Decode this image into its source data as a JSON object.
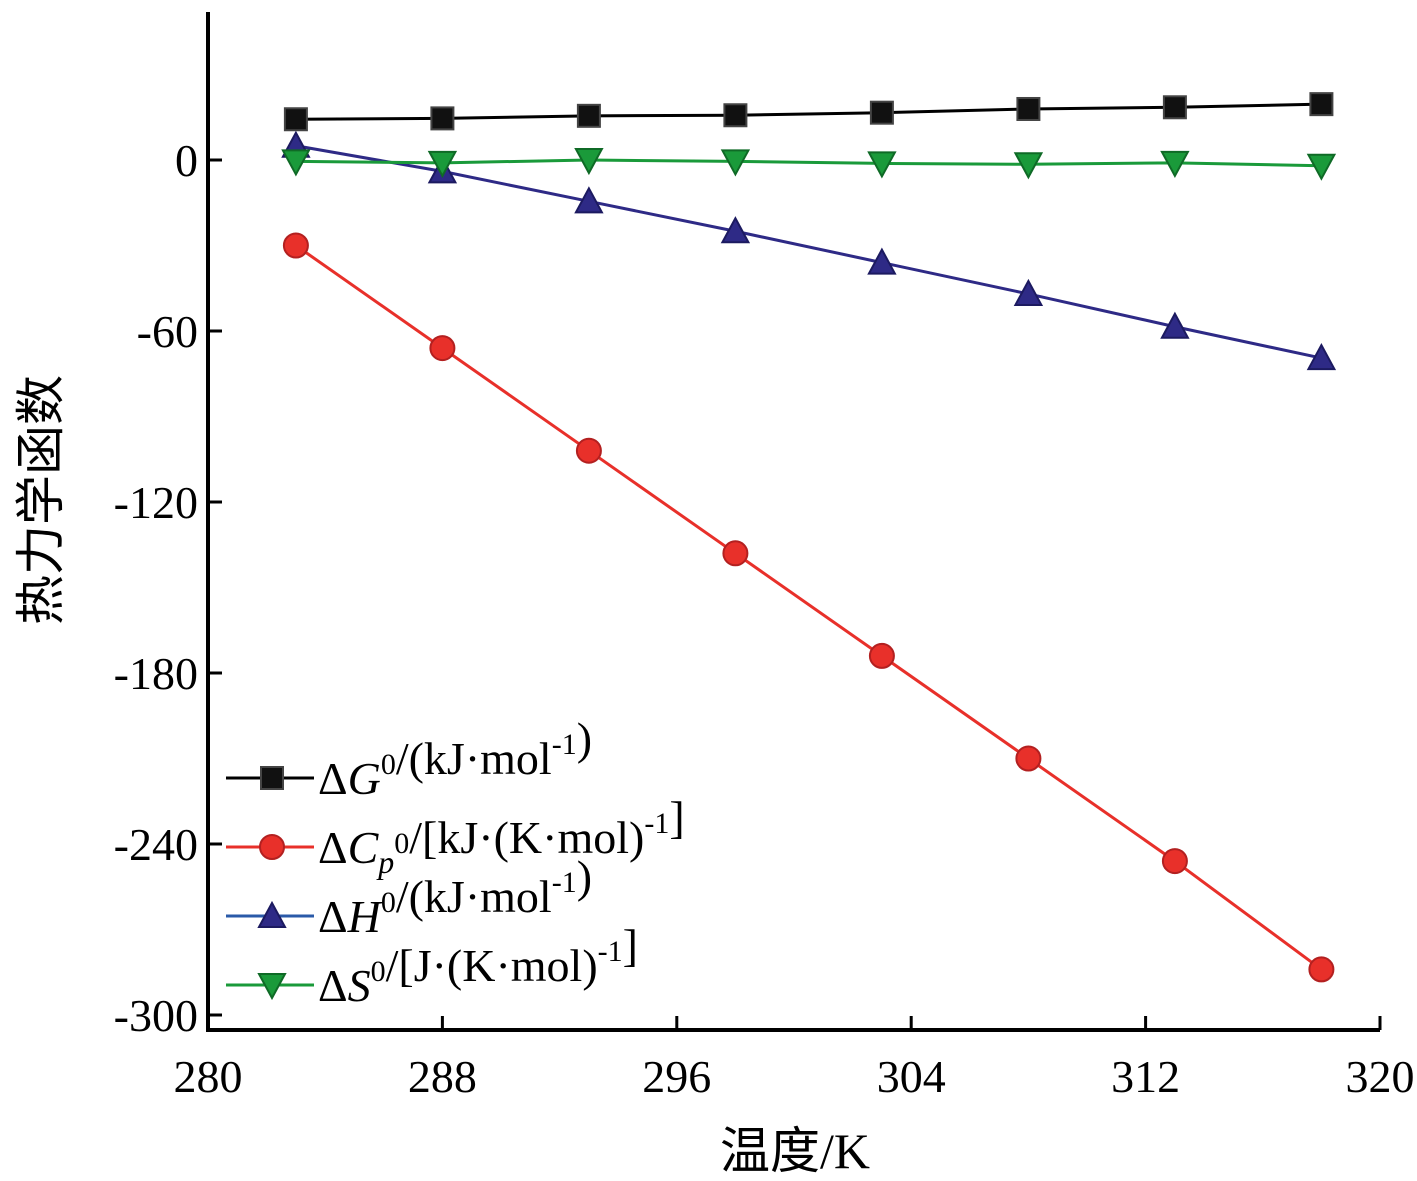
{
  "chart_data": {
    "type": "line",
    "xlabel": "温度/K",
    "ylabel": "热力学函数",
    "xlim": [
      280,
      320
    ],
    "ylim": [
      -300,
      50
    ],
    "xticks": [
      "280",
      "288",
      "296",
      "304",
      "312",
      "320"
    ],
    "yticks": [
      "0",
      "-60",
      "-120",
      "-180",
      "-240",
      "-300"
    ],
    "x": [
      283,
      288,
      293,
      298,
      303,
      308,
      313,
      318
    ],
    "series": [
      {
        "name": "ΔG0/(kJ·mol-1)",
        "marker": "square",
        "color": "#000000",
        "values": [
          14.3,
          14.6,
          15.5,
          15.7,
          16.6,
          17.9,
          18.5,
          19.6
        ]
      },
      {
        "name": "ΔCp0/[kJ·(K·mol)-1]",
        "marker": "circle",
        "color": "#e8302a",
        "values": [
          -30,
          -66,
          -102,
          -138,
          -174,
          -210,
          -246,
          -284
        ]
      },
      {
        "name": "ΔH0/(kJ·mol-1)",
        "marker": "triangle-up",
        "color": "#2e2a86",
        "values": [
          5,
          -4,
          -14.5,
          -25,
          -36,
          -47,
          -58.5,
          -69.5
        ]
      },
      {
        "name": "ΔS0/[J·(K·mol)-1]",
        "marker": "triangle-down",
        "color": "#1a9a3a",
        "values": [
          -0.5,
          -1,
          0,
          -0.5,
          -1.2,
          -1.5,
          -1,
          -2
        ]
      }
    ],
    "legend_position": "lower-left",
    "grid": false
  }
}
